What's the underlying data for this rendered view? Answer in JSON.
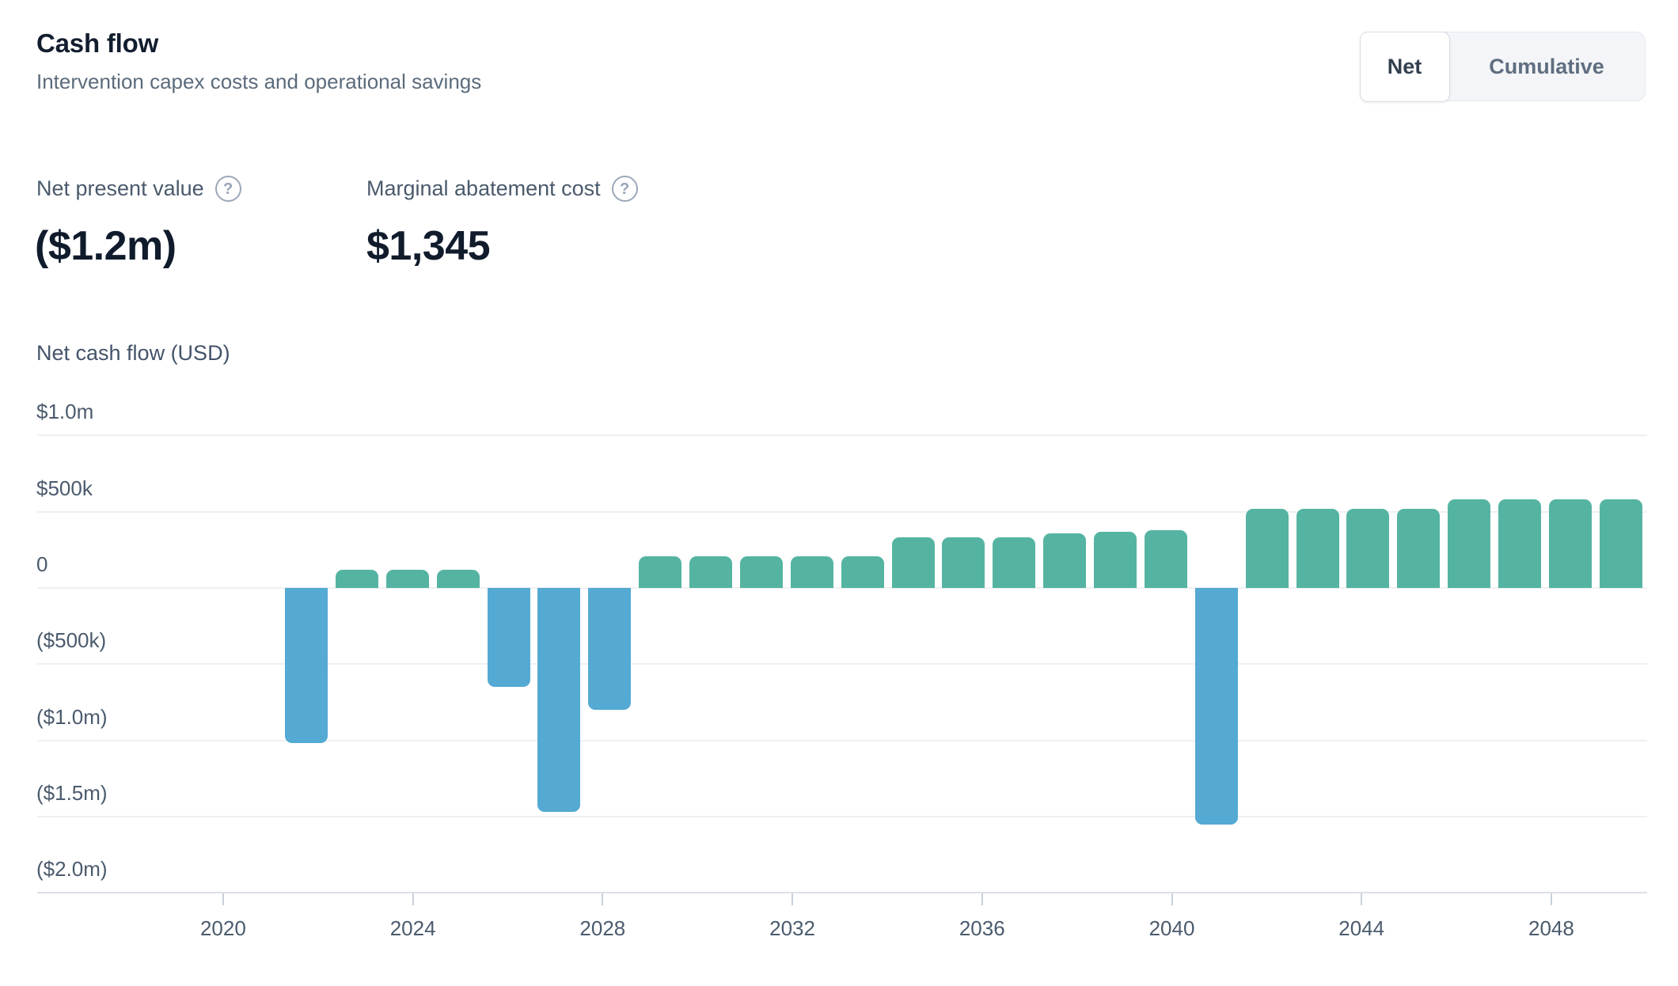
{
  "header": {
    "title": "Cash flow",
    "subtitle": "Intervention capex costs and operational savings"
  },
  "toggle": {
    "options": [
      {
        "label": "Net",
        "selected": true
      },
      {
        "label": "Cumulative",
        "selected": false
      }
    ]
  },
  "icons": {
    "help_glyph": "?"
  },
  "stats": [
    {
      "label": "Net present value",
      "value": "($1.2m)"
    },
    {
      "label": "Marginal abatement cost",
      "value": "$1,345"
    }
  ],
  "chart_data": {
    "type": "bar",
    "title": "Net cash flow (USD)",
    "xlabel": "",
    "ylabel": "Net cash flow (USD)",
    "ylim": [
      -2000000,
      1000000
    ],
    "grid": "horizontal",
    "legend": "none",
    "colors": {
      "positive_bar": "#55b4a1",
      "negative_bar": "#54aad3"
    },
    "x": [
      2021,
      2022,
      2023,
      2024,
      2025,
      2026,
      2027,
      2028,
      2029,
      2030,
      2031,
      2032,
      2033,
      2034,
      2035,
      2036,
      2037,
      2038,
      2039,
      2040,
      2041,
      2042,
      2043,
      2044,
      2045,
      2046,
      2047
    ],
    "values": [
      -1020000,
      120000,
      120000,
      120000,
      -650000,
      -1470000,
      -800000,
      210000,
      210000,
      210000,
      210000,
      210000,
      330000,
      330000,
      330000,
      360000,
      370000,
      380000,
      -1550000,
      520000,
      520000,
      520000,
      520000,
      580000,
      580000,
      580000,
      580000
    ],
    "y_axis": {
      "ticks": [
        {
          "label": "$1.0m",
          "value": 1000000
        },
        {
          "label": "$500k",
          "value": 500000
        },
        {
          "label": "0",
          "value": 0
        },
        {
          "label": "($500k)",
          "value": -500000
        },
        {
          "label": "($1.0m)",
          "value": -1000000
        },
        {
          "label": "($1.5m)",
          "value": -1500000
        },
        {
          "label": "($2.0m)",
          "value": -2000000
        }
      ]
    },
    "x_axis": {
      "ticks": [
        2020,
        2024,
        2028,
        2032,
        2036,
        2040,
        2044,
        2048
      ]
    }
  }
}
